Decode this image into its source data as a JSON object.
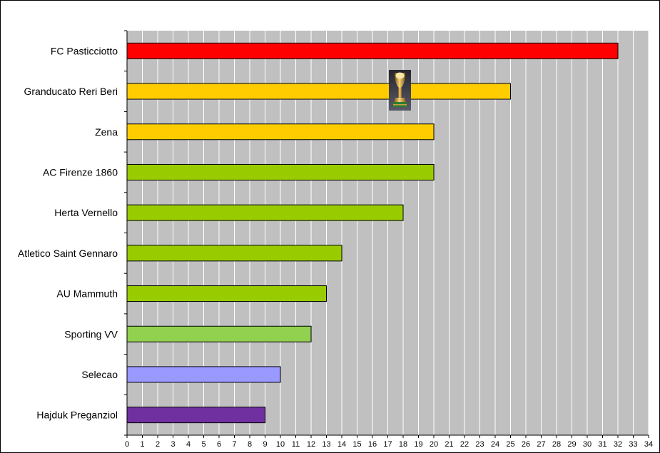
{
  "chart_data": {
    "type": "bar",
    "orientation": "horizontal",
    "categories": [
      "FC Pasticciotto",
      "Granducato Reri Beri",
      "Zena",
      "AC Firenze 1860",
      "Herta Vernello",
      "Atletico Saint Gennaro",
      "AU Mammuth",
      "Sporting VV",
      "Selecao",
      "Hajduk Preganziol"
    ],
    "values": [
      32,
      25,
      20,
      20,
      18,
      14,
      13,
      12,
      10,
      9
    ],
    "colors": [
      "#ff0000",
      "#ffcc00",
      "#ffcc00",
      "#99cc00",
      "#99cc00",
      "#99cc00",
      "#99cc00",
      "#92d050",
      "#9999ff",
      "#7030a0"
    ],
    "xlim": [
      0,
      34
    ],
    "xticks": [
      "0",
      "1",
      "2",
      "3",
      "4",
      "5",
      "6",
      "7",
      "8",
      "9",
      "10",
      "11",
      "12",
      "13",
      "14",
      "15",
      "16",
      "17",
      "18",
      "19",
      "20",
      "21",
      "22",
      "23",
      "24",
      "25",
      "26",
      "27",
      "28",
      "29",
      "30",
      "31",
      "32",
      "33",
      "34"
    ],
    "plot_background": "#c0c0c0",
    "gridlines": "vertical",
    "legend": "none",
    "title": "",
    "xlabel": "",
    "ylabel": "",
    "annotation_icon": "trophy-icon"
  }
}
